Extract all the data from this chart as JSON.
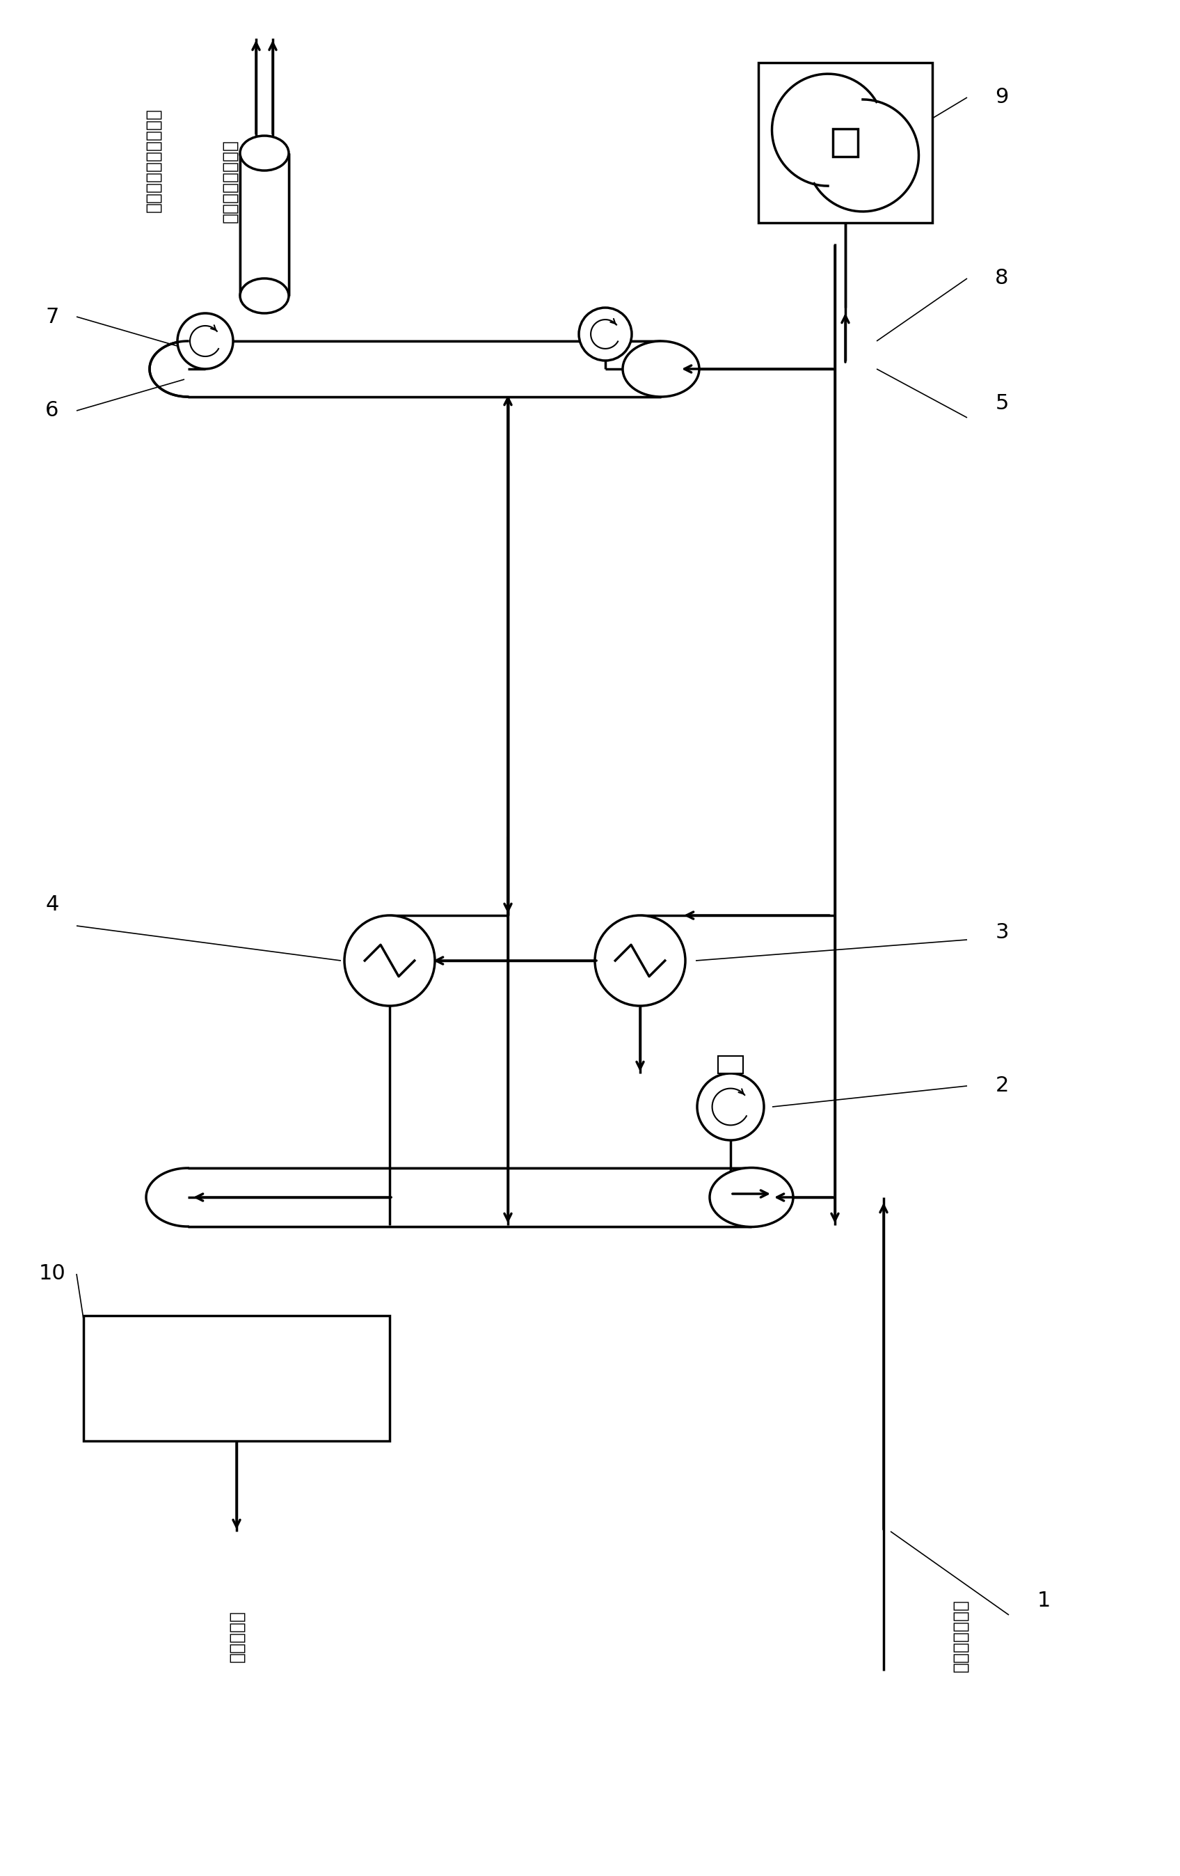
{
  "bg_color": "#ffffff",
  "line_color": "#000000",
  "fig_width": 16.96,
  "fig_height": 26.95,
  "labels": {
    "label1": "1",
    "label2": "2",
    "label3": "3",
    "label4": "4",
    "label5": "5",
    "label6": "6",
    "label7": "7",
    "label8": "8",
    "label9": "9",
    "label10": "10",
    "text_hcl": "氯化氢去盐酸处理单元",
    "text_toluene": "甲苯去氯化苄生产",
    "text_feed": "氯化苯生产尾气",
    "text_tank": "去盐酸装置"
  }
}
